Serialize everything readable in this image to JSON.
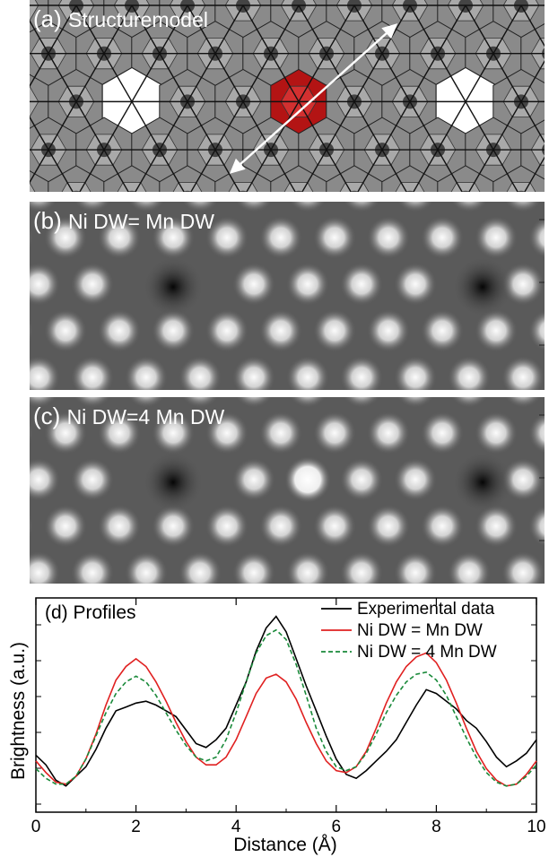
{
  "panels": {
    "a": {
      "letter": "(a)",
      "title": "Structuremodel"
    },
    "b": {
      "letter": "(b)",
      "title": "Ni DW= Mn DW"
    },
    "c": {
      "letter": "(c)",
      "title": "Ni DW=4 Mn DW"
    }
  },
  "colors": {
    "experimental": "#000000",
    "ni_eq_mn": "#e02020",
    "ni_4mn": "#1a8a3a",
    "highlight_octahedron": "#b31414"
  },
  "chart_data": {
    "type": "line",
    "title": "(d) Profiles",
    "xlabel": "Distance (Å)",
    "ylabel": "Brightness (a.u.)",
    "xlim": [
      0,
      10
    ],
    "ylim": [
      0,
      1
    ],
    "xticks": [
      "0",
      "2",
      "4",
      "6",
      "8",
      "10"
    ],
    "legend_position": "top-right",
    "series": [
      {
        "name": "Experimental data",
        "style": "solid",
        "x": [
          0,
          0.2,
          0.4,
          0.6,
          0.8,
          1.0,
          1.2,
          1.4,
          1.6,
          1.8,
          2.0,
          2.2,
          2.4,
          2.6,
          2.8,
          3.0,
          3.2,
          3.4,
          3.6,
          3.8,
          4.0,
          4.2,
          4.4,
          4.6,
          4.8,
          5.0,
          5.2,
          5.4,
          5.6,
          5.8,
          6.0,
          6.2,
          6.4,
          6.6,
          6.8,
          7.0,
          7.2,
          7.4,
          7.6,
          7.8,
          8.0,
          8.2,
          8.4,
          8.6,
          8.8,
          9.0,
          9.2,
          9.4,
          9.6,
          9.8,
          10.0
        ],
        "y": [
          0.24,
          0.19,
          0.11,
          0.08,
          0.13,
          0.18,
          0.27,
          0.38,
          0.47,
          0.49,
          0.51,
          0.52,
          0.5,
          0.47,
          0.44,
          0.37,
          0.3,
          0.28,
          0.32,
          0.38,
          0.5,
          0.62,
          0.78,
          0.9,
          0.96,
          0.88,
          0.74,
          0.6,
          0.47,
          0.34,
          0.22,
          0.14,
          0.12,
          0.16,
          0.21,
          0.26,
          0.32,
          0.41,
          0.5,
          0.58,
          0.56,
          0.52,
          0.48,
          0.42,
          0.38,
          0.31,
          0.23,
          0.18,
          0.21,
          0.25,
          0.32
        ]
      },
      {
        "name": "Ni DW = Mn DW",
        "style": "solid",
        "x": [
          0,
          0.2,
          0.4,
          0.6,
          0.8,
          1.0,
          1.2,
          1.4,
          1.6,
          1.8,
          2.0,
          2.2,
          2.4,
          2.6,
          2.8,
          3.0,
          3.2,
          3.4,
          3.6,
          3.8,
          4.0,
          4.2,
          4.4,
          4.6,
          4.8,
          5.0,
          5.2,
          5.4,
          5.6,
          5.8,
          6.0,
          6.2,
          6.4,
          6.6,
          6.8,
          7.0,
          7.2,
          7.4,
          7.6,
          7.8,
          8.0,
          8.2,
          8.4,
          8.6,
          8.8,
          9.0,
          9.2,
          9.4,
          9.6,
          9.8,
          10.0
        ],
        "y": [
          0.21,
          0.15,
          0.1,
          0.09,
          0.13,
          0.22,
          0.35,
          0.5,
          0.63,
          0.7,
          0.74,
          0.7,
          0.62,
          0.52,
          0.41,
          0.31,
          0.23,
          0.19,
          0.19,
          0.23,
          0.32,
          0.44,
          0.56,
          0.64,
          0.66,
          0.62,
          0.53,
          0.41,
          0.3,
          0.21,
          0.16,
          0.15,
          0.18,
          0.26,
          0.38,
          0.51,
          0.62,
          0.7,
          0.75,
          0.77,
          0.72,
          0.63,
          0.51,
          0.38,
          0.26,
          0.17,
          0.11,
          0.08,
          0.09,
          0.14,
          0.21
        ]
      },
      {
        "name": "Ni DW = 4 Mn DW",
        "style": "dashed",
        "x": [
          0,
          0.2,
          0.4,
          0.6,
          0.8,
          1.0,
          1.2,
          1.4,
          1.6,
          1.8,
          2.0,
          2.2,
          2.4,
          2.6,
          2.8,
          3.0,
          3.2,
          3.4,
          3.6,
          3.8,
          4.0,
          4.2,
          4.4,
          4.6,
          4.8,
          5.0,
          5.2,
          5.4,
          5.6,
          5.8,
          6.0,
          6.2,
          6.4,
          6.6,
          6.8,
          7.0,
          7.2,
          7.4,
          7.6,
          7.8,
          8.0,
          8.2,
          8.4,
          8.6,
          8.8,
          9.0,
          9.2,
          9.4,
          9.6,
          9.8,
          10.0
        ],
        "y": [
          0.17,
          0.12,
          0.09,
          0.09,
          0.13,
          0.22,
          0.34,
          0.46,
          0.56,
          0.62,
          0.65,
          0.62,
          0.55,
          0.46,
          0.37,
          0.29,
          0.23,
          0.21,
          0.23,
          0.32,
          0.46,
          0.62,
          0.77,
          0.86,
          0.89,
          0.84,
          0.71,
          0.55,
          0.38,
          0.26,
          0.18,
          0.16,
          0.18,
          0.25,
          0.35,
          0.46,
          0.55,
          0.62,
          0.66,
          0.67,
          0.63,
          0.55,
          0.44,
          0.33,
          0.23,
          0.15,
          0.1,
          0.08,
          0.09,
          0.13,
          0.19
        ]
      }
    ]
  }
}
